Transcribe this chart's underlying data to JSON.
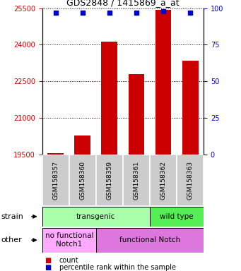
{
  "title": "GDS2848 / 1415869_a_at",
  "samples": [
    "GSM158357",
    "GSM158360",
    "GSM158359",
    "GSM158361",
    "GSM158362",
    "GSM158363"
  ],
  "counts": [
    19540,
    20270,
    24130,
    22800,
    25430,
    23350
  ],
  "percentiles": [
    97,
    97,
    97,
    97,
    98,
    97
  ],
  "ylim_left": [
    19500,
    25500
  ],
  "ylim_right": [
    0,
    100
  ],
  "yticks_left": [
    19500,
    21000,
    22500,
    24000,
    25500
  ],
  "yticks_right": [
    0,
    25,
    50,
    75,
    100
  ],
  "bar_color": "#cc0000",
  "dot_color": "#0000cc",
  "strain_groups": [
    {
      "label": "transgenic",
      "start": 0,
      "end": 4,
      "color": "#aaffaa"
    },
    {
      "label": "wild type",
      "start": 4,
      "end": 6,
      "color": "#55ee55"
    }
  ],
  "other_groups": [
    {
      "label": "no functional\nNotch1",
      "start": 0,
      "end": 2,
      "color": "#ffaaff"
    },
    {
      "label": "functional Notch",
      "start": 2,
      "end": 6,
      "color": "#dd77dd"
    }
  ],
  "legend_count_color": "#cc0000",
  "legend_percentile_color": "#0000cc",
  "left_ytick_color": "#cc0000",
  "right_ytick_color": "#0000cc",
  "bg_color": "#ffffff",
  "label_area_color": "#cccccc"
}
